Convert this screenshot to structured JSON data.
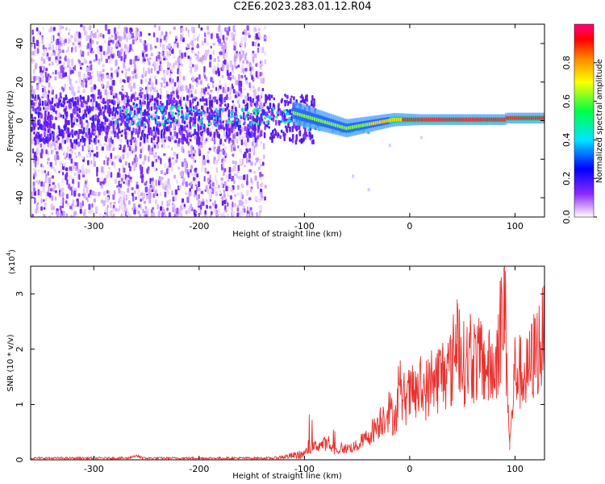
{
  "title": "C2E6.2023.283.01.12.R04",
  "chart_data": [
    {
      "type": "heatmap",
      "xlabel": "Height of straight line (km)",
      "ylabel": "Frequency (Hz)",
      "xlim": [
        -360,
        128
      ],
      "ylim": [
        -50,
        50
      ],
      "xticks": [
        -300,
        -200,
        -100,
        0,
        100
      ],
      "yticks": [
        -40,
        -20,
        0,
        20,
        40
      ],
      "colorbar": {
        "label": "Normalized spectral amplitude",
        "range": [
          0,
          1
        ],
        "ticks": [
          0.0,
          0.2,
          0.4,
          0.6,
          0.8
        ],
        "colormap": "rainbow (white-purple-blue-cyan-green-yellow-red-magenta)"
      },
      "features": {
        "scatter_region_x": [
          -360,
          -140
        ],
        "bright_band_frequency_hz": 1,
        "max_amplitude_region_x": [
          -20,
          128
        ]
      }
    },
    {
      "type": "line",
      "xlabel": "Height of straight line (km)",
      "ylabel": "SNR (10 * v/v)",
      "y_multiplier_label": "(x10",
      "y_multiplier_exp": "4",
      "y_multiplier_close": ")",
      "xlim": [
        -360,
        128
      ],
      "ylim": [
        0,
        3.5
      ],
      "xticks": [
        -300,
        -200,
        -100,
        0,
        100
      ],
      "yticks": [
        0,
        1,
        2,
        3
      ],
      "series": [
        {
          "color": "#e8322f",
          "x": [
            -360,
            -300,
            -200,
            -130,
            -100,
            -90,
            -80,
            -70,
            -60,
            -50,
            -40,
            -30,
            -20,
            -15,
            -10,
            0,
            10,
            20,
            30,
            40,
            45,
            50,
            60,
            70,
            80,
            90,
            95,
            100,
            110,
            120,
            128
          ],
          "y": [
            0.02,
            0.02,
            0.02,
            0.03,
            0.15,
            0.3,
            0.35,
            0.2,
            0.25,
            0.3,
            0.5,
            0.8,
            1.1,
            0.9,
            1.3,
            1.4,
            1.5,
            1.6,
            1.9,
            2.0,
            2.9,
            2.1,
            2.2,
            2.1,
            1.9,
            3.5,
            0.3,
            2.0,
            1.8,
            2.4,
            2.7
          ]
        }
      ]
    }
  ]
}
